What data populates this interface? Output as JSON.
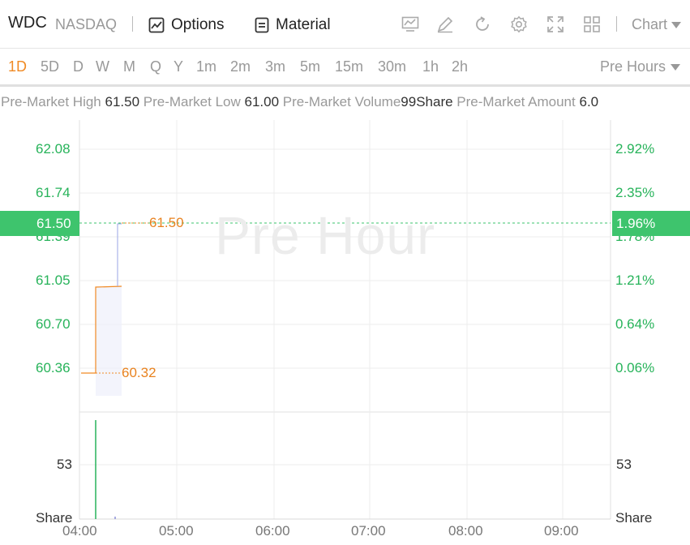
{
  "header": {
    "ticker": "WDC",
    "exchange": "NASDAQ",
    "options_label": "Options",
    "material_label": "Material",
    "chart_select": "Chart"
  },
  "periods": [
    "1D",
    "5D",
    "D",
    "W",
    "M",
    "Q",
    "Y",
    "1m",
    "2m",
    "3m",
    "5m",
    "15m",
    "30m",
    "1h",
    "2h"
  ],
  "active_period": "1D",
  "session_select": "Pre Hours",
  "stats": {
    "high_label": "Pre-Market High",
    "high_value": "61.50",
    "low_label": "Pre-Market Low",
    "low_value": "61.00",
    "volume_label": "Pre-Market Volume",
    "volume_value": "99Share",
    "amount_label": "Pre-Market Amount",
    "amount_value": "6.0"
  },
  "chart": {
    "watermark": "Pre Hour",
    "current_price": "61.50",
    "current_pct": "1.96%",
    "annotation_high": "61.50",
    "annotation_low": "60.32",
    "volume_unit": "Share",
    "volume_tick": "53"
  },
  "chart_data": {
    "type": "line",
    "price_ticks": [
      "62.08",
      "61.74",
      "61.39",
      "61.05",
      "60.70",
      "60.36"
    ],
    "pct_ticks": [
      "2.92%",
      "2.35%",
      "1.78%",
      "1.21%",
      "0.64%",
      "0.06%"
    ],
    "x_ticks": [
      "04:00",
      "05:00",
      "06:00",
      "07:00",
      "08:00",
      "09:00"
    ],
    "price_series": [
      {
        "t": "04:00",
        "price": 60.32
      },
      {
        "t": "04:15",
        "price": 60.32
      },
      {
        "t": "04:16",
        "price": 61.0
      },
      {
        "t": "04:20",
        "price": 61.0
      },
      {
        "t": "04:21",
        "price": 61.5
      }
    ],
    "volume_series": [
      {
        "t": "04:15",
        "volume": 99
      }
    ],
    "up_color": "#27b35a",
    "line_color": "#f08a24"
  },
  "colors": {
    "accent": "#f08a24",
    "green": "#3ec46d",
    "grid": "#ececec"
  }
}
